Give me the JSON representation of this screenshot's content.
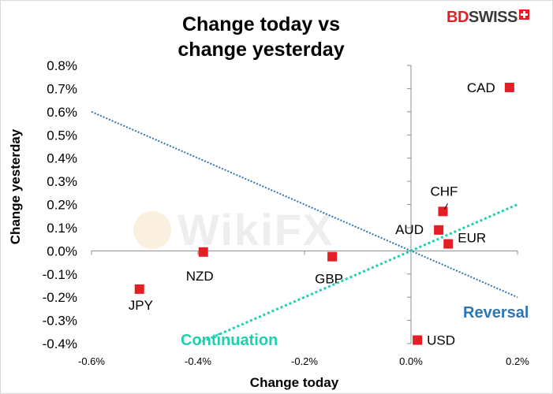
{
  "chart_data": {
    "type": "scatter",
    "title_line1": "Change today vs",
    "title_line2": "change yesterday",
    "xlabel": "Change today",
    "ylabel": "Change yesterday",
    "xlim": [
      -0.6,
      0.2
    ],
    "ylim": [
      -0.4,
      0.8
    ],
    "x_ticks": [
      -0.6,
      -0.4,
      -0.2,
      0.0,
      0.2
    ],
    "x_tick_labels": [
      "-0.6%",
      "-0.4%",
      "-0.2%",
      "0.0%",
      "0.2%"
    ],
    "y_ticks": [
      0.8,
      0.7,
      0.6,
      0.5,
      0.4,
      0.3,
      0.2,
      0.1,
      0.0,
      -0.1,
      -0.2,
      -0.3,
      -0.4
    ],
    "y_tick_labels": [
      "0.8%",
      "0.7%",
      "0.6%",
      "0.5%",
      "0.4%",
      "0.3%",
      "0.2%",
      "0.1%",
      "0.0%",
      "-0.1%",
      "-0.2%",
      "-0.3%",
      "-0.4%"
    ],
    "grid": false,
    "points": [
      {
        "label": "CAD",
        "x": 0.185,
        "y": 0.705
      },
      {
        "label": "CHF",
        "x": 0.06,
        "y": 0.17
      },
      {
        "label": "AUD",
        "x": 0.052,
        "y": 0.09
      },
      {
        "label": "EUR",
        "x": 0.07,
        "y": 0.03
      },
      {
        "label": "NZD",
        "x": -0.39,
        "y": -0.005
      },
      {
        "label": "GBP",
        "x": -0.148,
        "y": -0.025
      },
      {
        "label": "JPY",
        "x": -0.51,
        "y": -0.165
      },
      {
        "label": "USD",
        "x": 0.012,
        "y": -0.385
      }
    ],
    "trendlines": [
      {
        "name": "Reversal",
        "x1": -0.6,
        "y1": 0.6,
        "x2": 0.2,
        "y2": -0.2,
        "color": "#2e75b6"
      },
      {
        "name": "Continuation",
        "x1": -0.4,
        "y1": -0.4,
        "x2": 0.2,
        "y2": 0.2,
        "color": "#1fcfb0"
      }
    ],
    "colors": {
      "marker": "#e31e24",
      "reversal": "#2e75b6",
      "continuation": "#1fcfb0",
      "axis": "#8c8c8c"
    }
  },
  "branding": {
    "logo_red": "BD",
    "logo_dark": "SWISS",
    "watermark": "WikiFX"
  }
}
